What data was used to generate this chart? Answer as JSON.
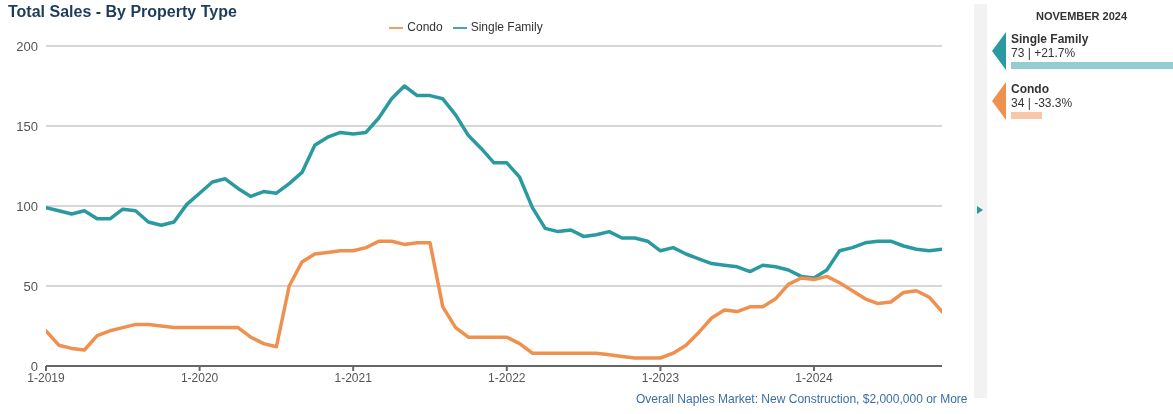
{
  "chart_data": {
    "type": "line",
    "title": "Total Sales - By Property Type",
    "x": [
      "2019-01",
      "2019-02",
      "2019-03",
      "2019-04",
      "2019-05",
      "2019-06",
      "2019-07",
      "2019-08",
      "2019-09",
      "2019-10",
      "2019-11",
      "2019-12",
      "2020-01",
      "2020-02",
      "2020-03",
      "2020-04",
      "2020-05",
      "2020-06",
      "2020-07",
      "2020-08",
      "2020-09",
      "2020-10",
      "2020-11",
      "2020-12",
      "2021-01",
      "2021-02",
      "2021-03",
      "2021-04",
      "2021-05",
      "2021-06",
      "2021-07",
      "2021-08",
      "2021-09",
      "2021-10",
      "2021-11",
      "2021-12",
      "2022-01",
      "2022-02",
      "2022-03",
      "2022-04",
      "2022-05",
      "2022-06",
      "2022-07",
      "2022-08",
      "2022-09",
      "2022-10",
      "2022-11",
      "2022-12",
      "2023-01",
      "2023-02",
      "2023-03",
      "2023-04",
      "2023-05",
      "2023-06",
      "2023-07",
      "2023-08",
      "2023-09",
      "2023-10",
      "2023-11",
      "2023-12",
      "2024-01",
      "2024-02",
      "2024-03",
      "2024-04",
      "2024-05",
      "2024-06",
      "2024-07",
      "2024-08",
      "2024-09",
      "2024-10",
      "2024-11"
    ],
    "series": [
      {
        "name": "Single Family",
        "color": "#2a9aa0",
        "values": [
          99,
          97,
          95,
          97,
          92,
          92,
          98,
          97,
          90,
          88,
          90,
          101,
          108,
          115,
          117,
          111,
          106,
          109,
          108,
          114,
          121,
          138,
          143,
          146,
          145,
          146,
          155,
          167,
          175,
          169,
          169,
          167,
          157,
          144,
          136,
          127,
          127,
          118,
          99,
          86,
          84,
          85,
          81,
          82,
          84,
          80,
          80,
          78,
          72,
          74,
          70,
          67,
          64,
          63,
          62,
          59,
          63,
          62,
          60,
          56,
          55,
          60,
          72,
          74,
          77,
          78,
          78,
          75,
          73,
          72,
          73
        ]
      },
      {
        "name": "Condo",
        "color": "#f0904f",
        "values": [
          22,
          13,
          11,
          10,
          19,
          22,
          24,
          26,
          26,
          25,
          24,
          24,
          24,
          24,
          24,
          24,
          18,
          14,
          12,
          50,
          65,
          70,
          71,
          72,
          72,
          74,
          78,
          78,
          76,
          77,
          77,
          37,
          24,
          18,
          18,
          18,
          18,
          14,
          8,
          8,
          8,
          8,
          8,
          8,
          7,
          6,
          5,
          5,
          5,
          8,
          13,
          21,
          30,
          35,
          34,
          37,
          37,
          42,
          51,
          55,
          54,
          56,
          52,
          47,
          42,
          39,
          40,
          46,
          47,
          43,
          34
        ]
      }
    ],
    "xlim": [
      "2019-01",
      "2024-11"
    ],
    "xticks": [
      {
        "value": "2019-01",
        "label": "1-2019"
      },
      {
        "value": "2020-01",
        "label": "1-2020"
      },
      {
        "value": "2021-01",
        "label": "1-2021"
      },
      {
        "value": "2022-01",
        "label": "1-2022"
      },
      {
        "value": "2023-01",
        "label": "1-2023"
      },
      {
        "value": "2024-01",
        "label": "1-2024"
      }
    ],
    "ylim": [
      0,
      200
    ],
    "yticks": [
      0,
      50,
      100,
      150,
      200
    ],
    "grid": "y",
    "legend": "top",
    "marker": "none",
    "line_style": "solid",
    "annotations": [
      "NOVEMBER 2024",
      "73 | +21.7%",
      "34 | -33.3%",
      "Overall Naples Market: New Construction, $2,000,000 or More"
    ]
  }
}
